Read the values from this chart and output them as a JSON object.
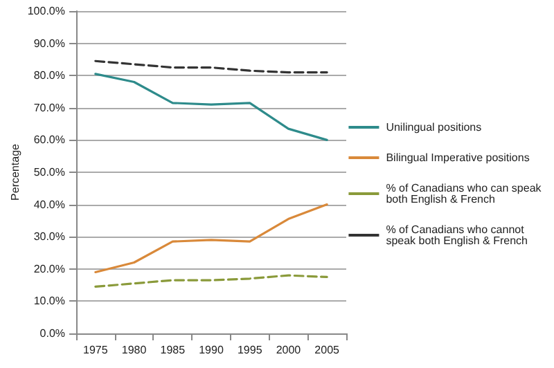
{
  "chart_data": {
    "type": "line",
    "ylabel": "Percentage",
    "categories": [
      "1975",
      "1980",
      "1985",
      "1990",
      "1995",
      "2000",
      "2005"
    ],
    "series": [
      {
        "name": "Unilingual positions",
        "color": "#2e8b8b",
        "line_style": "solid",
        "values": [
          80.5,
          78,
          71.5,
          71,
          71.5,
          63.5,
          60
        ]
      },
      {
        "name": "Bilingual Imperative positions",
        "color": "#d9893a",
        "line_style": "solid",
        "values": [
          19,
          22,
          28.5,
          29,
          28.5,
          35.5,
          40
        ]
      },
      {
        "name": "% of Canadians who can speak both English & French",
        "color": "#8a9a3a",
        "line_style": "dashed",
        "values": [
          14.5,
          15.5,
          16.5,
          16.5,
          17,
          18,
          17.5
        ]
      },
      {
        "name": "% of Canadians who cannot speak both English & French",
        "color": "#333333",
        "line_style": "dashed",
        "values": [
          84.5,
          83.5,
          82.5,
          82.5,
          81.5,
          81,
          81
        ]
      }
    ],
    "ylim": [
      0,
      100
    ],
    "yticks": [
      {
        "value": 0,
        "label": "0.0%"
      },
      {
        "value": 10,
        "label": "10.0%"
      },
      {
        "value": 20,
        "label": "20.0%"
      },
      {
        "value": 30,
        "label": "30.0%"
      },
      {
        "value": 40,
        "label": "40.0%"
      },
      {
        "value": 50,
        "label": "50.0%"
      },
      {
        "value": 60,
        "label": "60.0%"
      },
      {
        "value": 70,
        "label": "70.0%"
      },
      {
        "value": 80,
        "label": "80.0%"
      },
      {
        "value": 90,
        "label": "90.0%"
      },
      {
        "value": 100,
        "label": "100.0%"
      }
    ],
    "grid": "y",
    "legend": "right",
    "marker": "none"
  }
}
